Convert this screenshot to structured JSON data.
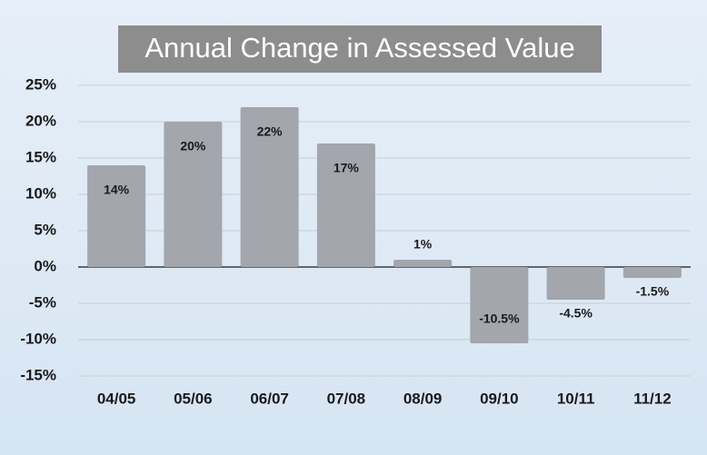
{
  "chart_data": {
    "type": "bar",
    "title": "Annual Change in Assessed Value",
    "categories": [
      "04/05",
      "05/06",
      "06/07",
      "07/08",
      "08/09",
      "09/10",
      "10/11",
      "11/12"
    ],
    "values": [
      14,
      20,
      22,
      17,
      1,
      -10.5,
      -4.5,
      -1.5
    ],
    "value_labels": [
      "14%",
      "20%",
      "22%",
      "17%",
      "1%",
      "-10.5%",
      "-4.5%",
      "-1.5%"
    ],
    "color": "#a3a6ac",
    "ylim": [
      -15,
      25
    ],
    "yticks": [
      {
        "value": -15,
        "label": "-15%"
      },
      {
        "value": -10,
        "label": "-10%"
      },
      {
        "value": -5,
        "label": "-5%"
      },
      {
        "value": 0,
        "label": "0%"
      },
      {
        "value": 5,
        "label": "5%"
      },
      {
        "value": 10,
        "label": "10%"
      },
      {
        "value": 15,
        "label": "15%"
      },
      {
        "value": 20,
        "label": "20%"
      },
      {
        "value": 25,
        "label": "25%"
      }
    ],
    "grid": true
  }
}
